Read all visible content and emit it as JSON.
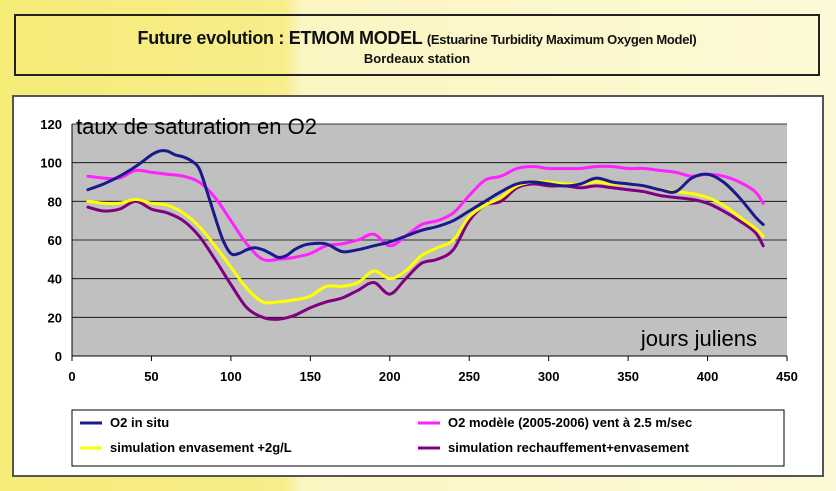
{
  "title": {
    "main": "Future evolution : ETMOM MODEL",
    "subtitle": "(Estuarine Turbidity Maximum Oxygen Model)",
    "station": "Bordeaux station"
  },
  "chart_data": {
    "type": "line",
    "xlim": [
      0,
      450
    ],
    "ylim": [
      0,
      120
    ],
    "xticks": [
      0,
      50,
      100,
      150,
      200,
      250,
      300,
      350,
      400,
      450
    ],
    "yticks": [
      0,
      20,
      40,
      60,
      80,
      100,
      120
    ],
    "grid": true,
    "plot_background": "#c0c0c0",
    "ylabel": "taux de saturation en O2",
    "xlabel": "jours juliens",
    "legend_position": "bottom",
    "series": [
      {
        "name": "O2 in situ",
        "color": "#1a1a8c",
        "x": [
          10,
          20,
          30,
          40,
          50,
          55,
          60,
          65,
          70,
          75,
          80,
          85,
          90,
          95,
          100,
          105,
          110,
          115,
          120,
          125,
          130,
          135,
          140,
          145,
          150,
          160,
          170,
          180,
          190,
          200,
          210,
          220,
          230,
          240,
          250,
          260,
          270,
          280,
          290,
          300,
          310,
          320,
          330,
          340,
          350,
          360,
          370,
          380,
          390,
          400,
          410,
          420,
          430,
          435
        ],
        "y": [
          86,
          89,
          93,
          98,
          104,
          106,
          106,
          104,
          103,
          101,
          97,
          85,
          72,
          60,
          53,
          53,
          55,
          56,
          55,
          53,
          51,
          52,
          55,
          57,
          58,
          58,
          54,
          55,
          57,
          59,
          62,
          65,
          67,
          70,
          75,
          80,
          85,
          89,
          90,
          89,
          88,
          89,
          92,
          90,
          89,
          88,
          86,
          85,
          92,
          94,
          90,
          82,
          72,
          68
        ]
      },
      {
        "name": "O2 modèle (2005-2006) vent à 2.5 m/sec",
        "color": "#ff22ff",
        "x": [
          10,
          20,
          30,
          40,
          50,
          60,
          70,
          80,
          90,
          100,
          110,
          120,
          130,
          140,
          150,
          160,
          170,
          180,
          190,
          200,
          210,
          220,
          230,
          240,
          250,
          260,
          270,
          280,
          290,
          300,
          310,
          320,
          330,
          340,
          350,
          360,
          370,
          380,
          390,
          400,
          410,
          420,
          430,
          435
        ],
        "y": [
          93,
          92,
          92,
          96,
          95,
          94,
          93,
          90,
          82,
          70,
          58,
          50,
          50,
          51,
          53,
          57,
          58,
          60,
          63,
          57,
          62,
          68,
          70,
          74,
          83,
          91,
          93,
          97,
          98,
          97,
          97,
          97,
          98,
          98,
          97,
          97,
          96,
          95,
          93,
          94,
          93,
          90,
          85,
          79
        ]
      },
      {
        "name": "simulation envasement +2g/L",
        "color": "#ffff00",
        "x": [
          10,
          20,
          30,
          40,
          50,
          60,
          70,
          80,
          90,
          100,
          110,
          120,
          130,
          140,
          150,
          160,
          170,
          180,
          190,
          200,
          210,
          220,
          230,
          240,
          250,
          260,
          270,
          280,
          290,
          300,
          310,
          320,
          330,
          340,
          350,
          360,
          370,
          380,
          390,
          400,
          410,
          420,
          430,
          435
        ],
        "y": [
          80,
          79,
          79,
          81,
          79,
          78,
          74,
          67,
          57,
          46,
          35,
          28,
          28,
          29,
          31,
          36,
          36,
          38,
          44,
          40,
          44,
          52,
          56,
          60,
          72,
          78,
          82,
          88,
          90,
          90,
          89,
          89,
          90,
          89,
          89,
          88,
          86,
          85,
          84,
          82,
          78,
          72,
          66,
          62
        ]
      },
      {
        "name": "simulation rechauffement+envasement",
        "color": "#800080",
        "x": [
          10,
          20,
          30,
          40,
          50,
          60,
          70,
          80,
          90,
          100,
          110,
          120,
          130,
          140,
          150,
          160,
          170,
          180,
          190,
          200,
          210,
          220,
          230,
          240,
          250,
          260,
          270,
          280,
          290,
          300,
          310,
          320,
          330,
          340,
          350,
          360,
          370,
          380,
          390,
          400,
          410,
          420,
          430,
          435
        ],
        "y": [
          77,
          75,
          76,
          80,
          76,
          74,
          70,
          62,
          50,
          37,
          25,
          20,
          19,
          21,
          25,
          28,
          30,
          34,
          38,
          32,
          40,
          48,
          50,
          55,
          70,
          78,
          80,
          87,
          89,
          88,
          88,
          87,
          88,
          87,
          86,
          85,
          83,
          82,
          81,
          79,
          75,
          70,
          64,
          57
        ]
      }
    ]
  }
}
